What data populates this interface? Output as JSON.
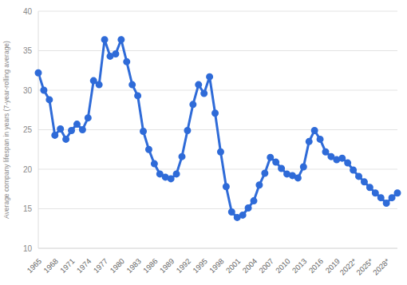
{
  "chart_data": {
    "type": "line",
    "y_label": "Average company lifespan in years (7-year-rolling average)",
    "categories": [
      "1965",
      null,
      null,
      "1968",
      null,
      null,
      "1971",
      null,
      null,
      "1974",
      null,
      null,
      "1977",
      null,
      null,
      "1980",
      null,
      null,
      "1983",
      null,
      null,
      "1986",
      null,
      null,
      "1989",
      null,
      null,
      "1992",
      null,
      null,
      "1995",
      null,
      null,
      "1998",
      null,
      null,
      "2001",
      null,
      null,
      "2004",
      null,
      null,
      "2007",
      null,
      null,
      "2010",
      null,
      null,
      "2013",
      null,
      null,
      "2016",
      null,
      null,
      "2019",
      null,
      null,
      "2022*",
      null,
      null,
      "2025*",
      null,
      null,
      "2028*",
      null,
      null
    ],
    "values": [
      32.2,
      30.0,
      28.8,
      24.3,
      25.1,
      23.8,
      24.9,
      25.7,
      25.0,
      26.5,
      31.2,
      30.7,
      36.4,
      34.3,
      34.6,
      36.4,
      33.6,
      30.7,
      29.3,
      24.8,
      22.5,
      20.7,
      19.4,
      19.0,
      18.8,
      19.4,
      21.6,
      24.9,
      28.2,
      30.7,
      29.6,
      31.7,
      27.1,
      22.2,
      17.8,
      14.6,
      13.9,
      14.2,
      15.1,
      16.0,
      18.0,
      19.5,
      21.5,
      20.9,
      20.1,
      19.4,
      19.2,
      18.9,
      20.3,
      23.5,
      24.9,
      23.8,
      22.2,
      21.6,
      21.2,
      21.4,
      20.8,
      19.9,
      19.1,
      18.4,
      17.7,
      17.0,
      16.4,
      15.7,
      16.4,
      17.0
    ],
    "color": "#2f6bd8",
    "marker": "circle",
    "ylim": [
      10,
      40
    ],
    "yticks": [
      10,
      15,
      20,
      25,
      30,
      35,
      40
    ],
    "grid": true
  }
}
